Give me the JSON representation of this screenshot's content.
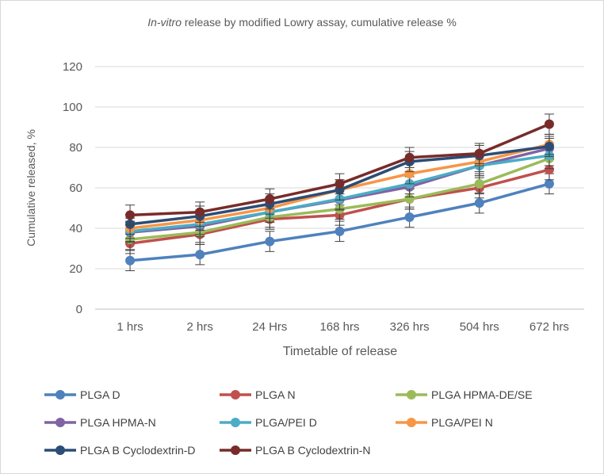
{
  "chart_data": {
    "type": "line",
    "title_italic": "In-vitro",
    "title_rest": " release by modified Lowry assay, cumulative release %",
    "xlabel": "Timetable of release",
    "ylabel": "Cumulative released, %",
    "ylim": [
      0,
      120
    ],
    "yticks": [
      0,
      20,
      40,
      60,
      80,
      100,
      120
    ],
    "grid": true,
    "legend_position": "bottom",
    "categories": [
      "1 hrs",
      "2 hrs",
      "24 Hrs",
      "168 hrs",
      "326 hrs",
      "504 hrs",
      "672 hrs"
    ],
    "error": 5,
    "series": [
      {
        "name": "PLGA D",
        "color": "#4f81bd",
        "values": [
          24,
          27,
          33.5,
          38.5,
          45.5,
          52.5,
          62
        ]
      },
      {
        "name": "PLGA N",
        "color": "#c0504d",
        "values": [
          32.5,
          37,
          44.5,
          46.5,
          54.5,
          60,
          69
        ]
      },
      {
        "name": "PLGA HPMA-DE/SE",
        "color": "#9bbb59",
        "values": [
          34.5,
          38,
          45.5,
          49.5,
          54.5,
          62,
          74.5
        ]
      },
      {
        "name": "PLGA HPMA-N",
        "color": "#8064a2",
        "values": [
          38,
          41,
          48,
          54,
          60.5,
          71,
          79.5
        ]
      },
      {
        "name": "PLGA/PEI D",
        "color": "#4bacc6",
        "values": [
          38.5,
          42,
          48,
          54.5,
          62,
          71,
          76
        ]
      },
      {
        "name": "PLGA/PEI N",
        "color": "#f79646",
        "values": [
          40,
          44,
          50,
          59,
          67,
          73,
          81.5
        ]
      },
      {
        "name": "PLGA B Cyclodextrin-D",
        "color": "#2c4d75",
        "values": [
          42,
          46,
          52,
          59,
          73,
          76,
          80.5
        ]
      },
      {
        "name": "PLGA B Cyclodextrin-N",
        "color": "#772c2a",
        "values": [
          46.5,
          48,
          54.5,
          62,
          75,
          77,
          91.5
        ]
      }
    ]
  }
}
